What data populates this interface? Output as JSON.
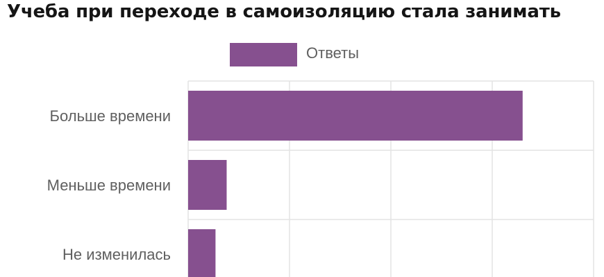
{
  "chart_data": {
    "type": "bar",
    "orientation": "horizontal",
    "title": "Учеба при переходе в самоизоляцию стала занимать",
    "legend": {
      "position": "top",
      "entries": [
        "Ответы"
      ]
    },
    "categories": [
      "Больше времени",
      "Меньше времени",
      "Не изменилась"
    ],
    "series": [
      {
        "name": "Ответы",
        "values": [
          330,
          38,
          27
        ]
      }
    ],
    "xlim": [
      0,
      400
    ],
    "grid": true,
    "colors": {
      "bar": "#86508f",
      "grid": "#e3e3e3"
    }
  }
}
